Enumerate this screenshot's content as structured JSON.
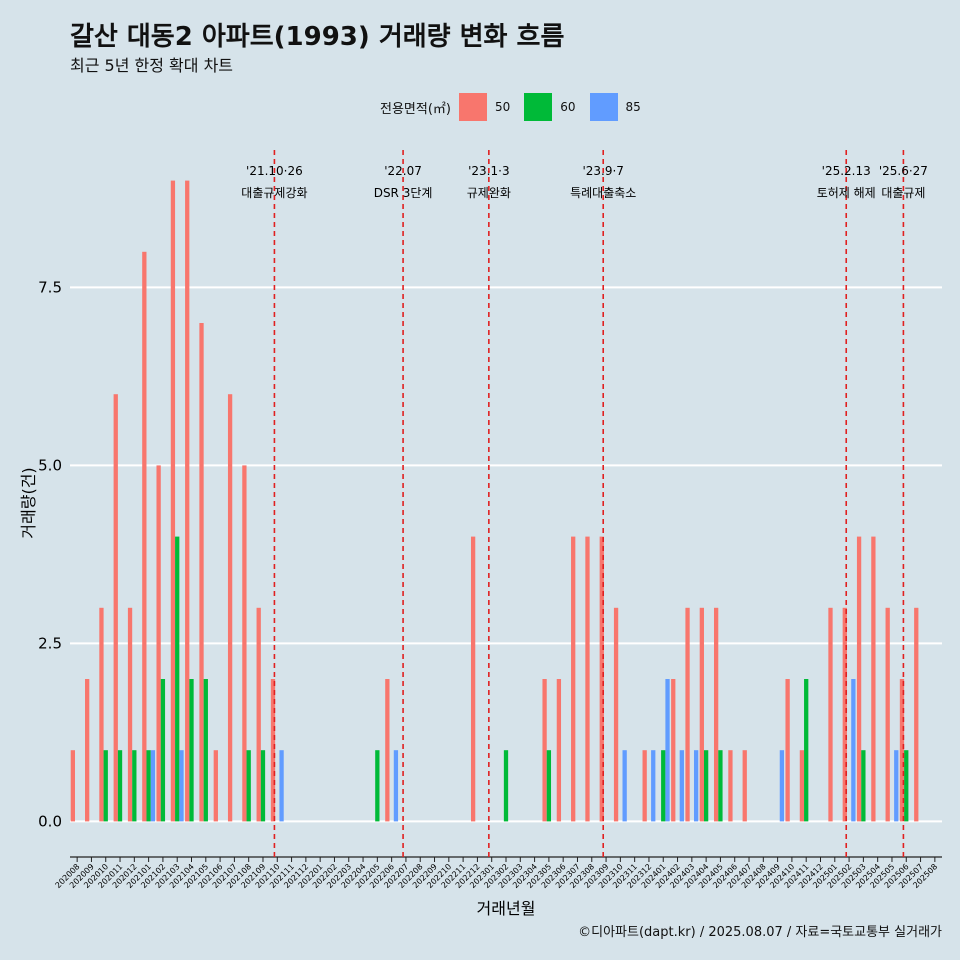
{
  "title": "갈산 대동2 아파트(1993) 거래량 변화 흐름",
  "subtitle": "최근 5년 한정 확대 차트",
  "caption": "©디아파트(dapt.kr) / 2025.08.07 / 자료=국토교통부 실거래가",
  "legend": {
    "title": "전용면적(㎡)",
    "items": [
      {
        "label": "50",
        "color": "#f8766d"
      },
      {
        "label": "60",
        "color": "#00ba38"
      },
      {
        "label": "85",
        "color": "#619cff"
      }
    ]
  },
  "chart_data": {
    "type": "bar",
    "xlabel": "거래년월",
    "ylabel": "거래량(건)",
    "ylim": [
      -0.5,
      9.5
    ],
    "yticks": [
      "0.0",
      "2.5",
      "5.0",
      "7.5"
    ],
    "ytick_values": [
      0,
      2.5,
      5,
      7.5
    ],
    "grid": "horizontal",
    "legend_position": "top",
    "categories": [
      "202008",
      "202009",
      "202010",
      "202011",
      "202012",
      "202101",
      "202102",
      "202103",
      "202104",
      "202105",
      "202106",
      "202107",
      "202108",
      "202109",
      "202110",
      "202111",
      "202112",
      "202201",
      "202202",
      "202203",
      "202204",
      "202205",
      "202206",
      "202207",
      "202208",
      "202209",
      "202210",
      "202211",
      "202212",
      "202301",
      "202302",
      "202303",
      "202304",
      "202305",
      "202306",
      "202307",
      "202308",
      "202309",
      "202310",
      "202311",
      "202312",
      "202401",
      "202402",
      "202403",
      "202404",
      "202405",
      "202406",
      "202407",
      "202408",
      "202409",
      "202410",
      "202411",
      "202412",
      "202501",
      "202502",
      "202503",
      "202504",
      "202505",
      "202506",
      "202507",
      "202508"
    ],
    "series": [
      {
        "name": "50",
        "color": "#f8766d",
        "values": [
          1,
          2,
          3,
          6,
          3,
          8,
          5,
          9,
          9,
          7,
          1,
          6,
          5,
          3,
          2,
          0,
          0,
          0,
          0,
          0,
          0,
          0,
          2,
          0,
          0,
          0,
          0,
          0,
          4,
          0,
          0,
          0,
          0,
          2,
          2,
          4,
          4,
          4,
          3,
          0,
          1,
          0,
          2,
          3,
          3,
          3,
          1,
          1,
          0,
          0,
          2,
          1,
          0,
          3,
          3,
          4,
          4,
          3,
          2,
          3,
          0
        ]
      },
      {
        "name": "60",
        "color": "#00ba38",
        "values": [
          0,
          0,
          1,
          1,
          1,
          1,
          2,
          4,
          2,
          2,
          0,
          0,
          1,
          1,
          0,
          0,
          0,
          0,
          0,
          0,
          0,
          1,
          0,
          0,
          0,
          0,
          0,
          0,
          0,
          0,
          1,
          0,
          0,
          1,
          0,
          0,
          0,
          0,
          0,
          0,
          0,
          1,
          0,
          0,
          1,
          1,
          0,
          0,
          0,
          0,
          0,
          2,
          0,
          0,
          0,
          1,
          0,
          0,
          1,
          0,
          0
        ]
      },
      {
        "name": "85",
        "color": "#619cff",
        "values": [
          0,
          0,
          0,
          0,
          0,
          1,
          0,
          1,
          0,
          0,
          0,
          0,
          0,
          0,
          1,
          0,
          0,
          0,
          0,
          0,
          0,
          0,
          1,
          0,
          0,
          0,
          0,
          0,
          0,
          0,
          0,
          0,
          0,
          0,
          0,
          0,
          0,
          0,
          1,
          0,
          1,
          2,
          1,
          1,
          0,
          0,
          0,
          0,
          0,
          1,
          0,
          0,
          0,
          0,
          2,
          0,
          0,
          1,
          0,
          0,
          0
        ]
      }
    ],
    "events": [
      {
        "pos": 14.3,
        "date": "'21.10·26",
        "label": "대출규제강화"
      },
      {
        "pos": 23.3,
        "date": "'22.07",
        "label": "DSR 3단계"
      },
      {
        "pos": 29.3,
        "date": "'23.1·3",
        "label": "규제완화"
      },
      {
        "pos": 37.3,
        "date": "'23.9·7",
        "label": "특례대출축소"
      },
      {
        "pos": 54.3,
        "date": "'25.2.13",
        "label": "토허제 해제"
      },
      {
        "pos": 58.3,
        "date": "'25.6·27",
        "label": "대출규제"
      }
    ]
  }
}
